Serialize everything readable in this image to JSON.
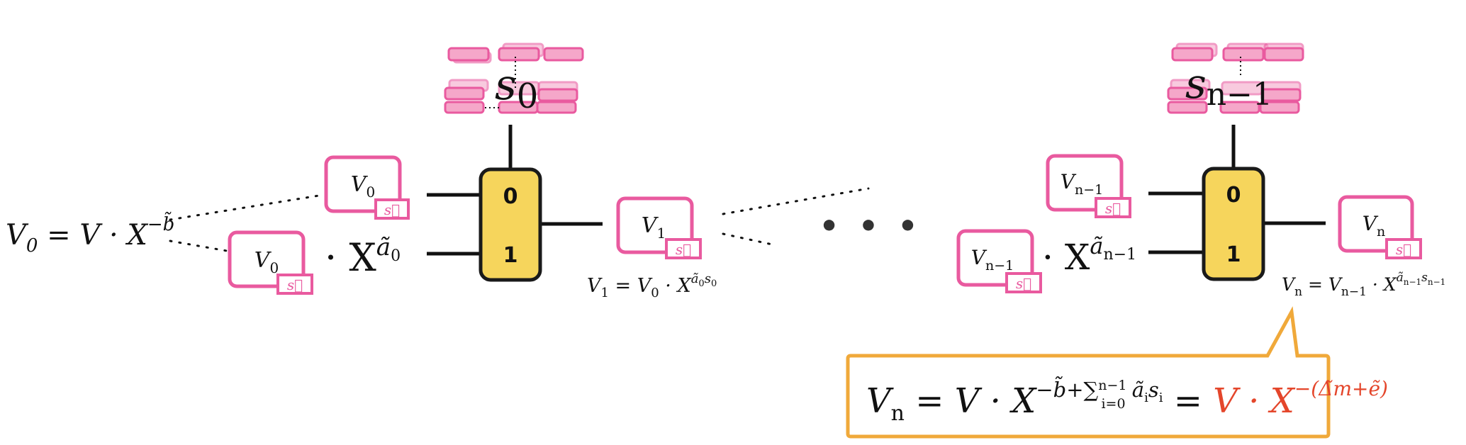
{
  "title": "Blind rotation: multiplexer chain from V0 to Vn",
  "colors": {
    "mux_fill": "#f6d55c",
    "mux_stroke": "#1a1a1a",
    "acc_stroke": "#e95a9f",
    "key_fill": "#f5a7c9",
    "callout_stroke": "#f0a93a",
    "highlight": "#e4462b"
  },
  "ellipsis": "• • •",
  "left_formula": {
    "lhs": "V",
    "sub": "0",
    "rhs": " = V · X",
    "exp": "−b̃"
  },
  "mux0": {
    "bit0": "0",
    "bit1": "1",
    "key": {
      "base": "s",
      "sub": "0"
    },
    "in_top": {
      "base": "V",
      "sub": "0",
      "tag": "s⃗"
    },
    "in_bot": {
      "base": "V",
      "sub": "0",
      "tag": "s⃗",
      "mult": "· X",
      "exp": "ã",
      "exp_sub": "0"
    },
    "out": {
      "base": "V",
      "sub": "1",
      "tag": "s⃗"
    },
    "caption": {
      "lhs": "V",
      "lhs_sub": "1",
      "mid": " = V",
      "mid_sub": "0",
      "op": " · X",
      "exp": "ã",
      "exp_sub": "0",
      "exp_tail": "s",
      "exp_tail_sub": "0"
    }
  },
  "mux_last": {
    "bit0": "0",
    "bit1": "1",
    "key": {
      "base": "s",
      "sub": "n−1"
    },
    "in_top": {
      "base": "V",
      "sub": "n−1",
      "tag": "s⃗"
    },
    "in_bot": {
      "base": "V",
      "sub": "n−1",
      "tag": "s⃗",
      "mult": "· X",
      "exp": "ã",
      "exp_sub": "n−1"
    },
    "out": {
      "base": "V",
      "sub": "n",
      "tag": "s⃗"
    },
    "caption": {
      "lhs": "V",
      "lhs_sub": "n",
      "mid": " = V",
      "mid_sub": "n−1",
      "op": " · X",
      "exp": "ã",
      "exp_sub": "n−1",
      "exp_tail": "s",
      "exp_tail_sub": "n−1"
    }
  },
  "result": {
    "lhs": "V",
    "lhs_sub": "n",
    "part1": " = V · X",
    "exp1": "−b̃+∑",
    "sum_upper": "n−1",
    "sum_lower": "i=0",
    "exp1_tail": " ã",
    "exp1_tail_sub": "i",
    "exp1_tail2": "s",
    "exp1_tail2_sub": "i",
    "eq": " = ",
    "red_part": "V · X",
    "red_exp": "−(Δ̃m+ẽ)"
  }
}
